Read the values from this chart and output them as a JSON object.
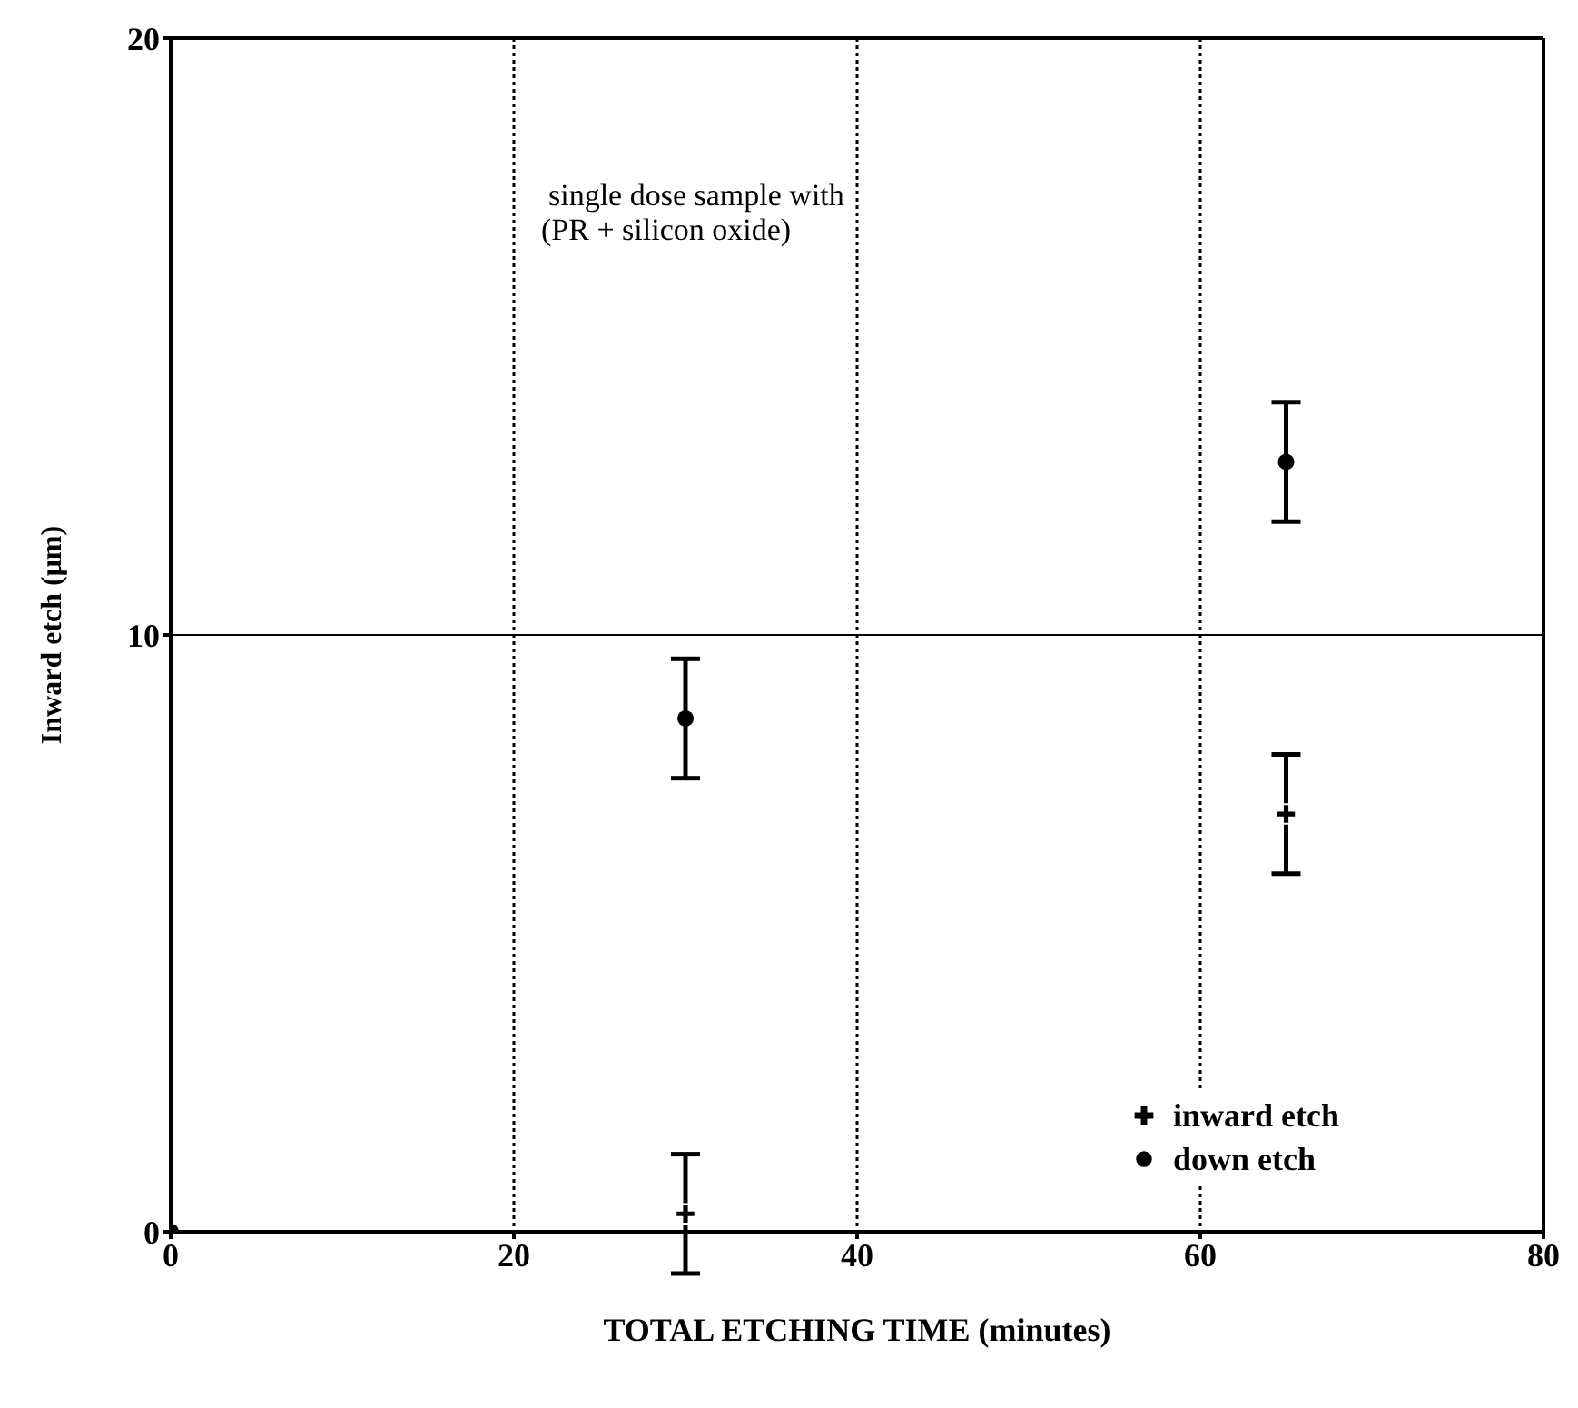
{
  "chart_data": {
    "type": "scatter",
    "xlabel": "TOTAL ETCHING TIME (minutes)",
    "ylabel": "Inward etch (μm)",
    "annotations": [
      "single dose sample with",
      "(PR + silicon oxide)"
    ],
    "xlim": [
      0,
      80
    ],
    "xticks": [
      0,
      20,
      40,
      60,
      80
    ],
    "ylim": [
      0,
      20
    ],
    "yticks": [
      0,
      10,
      20
    ],
    "grid": "x",
    "ref_lines": [
      {
        "axis": "y",
        "value": 10
      }
    ],
    "legend": "bottom right",
    "series": [
      {
        "name": "inward etch",
        "color": "#000000",
        "marker": "cross",
        "x": [
          30,
          65
        ],
        "values": [
          0.3,
          7
        ],
        "errors": [
          1,
          1
        ]
      },
      {
        "name": "down etch",
        "color": "#000000",
        "marker": "circle",
        "x": [
          0,
          30,
          65
        ],
        "values": [
          0,
          8.6,
          12.9
        ],
        "errors": [
          null,
          1,
          1
        ]
      }
    ]
  }
}
